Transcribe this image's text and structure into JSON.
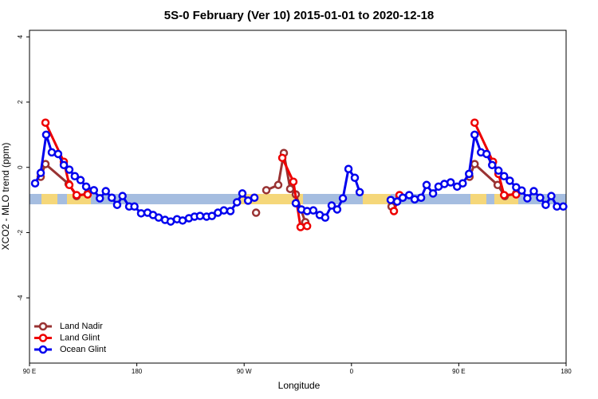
{
  "chart_data": {
    "type": "line",
    "title": "5S-0 February (Ver 10)   2015-01-01 to 2020-12-18",
    "x_label": "Longitude",
    "y_label": "XCO2 - MLO trend (ppm)",
    "xlim": [
      90,
      540
    ],
    "xticks": [
      {
        "value": 90,
        "label": "90 E"
      },
      {
        "value": 180,
        "label": "180"
      },
      {
        "value": 270,
        "label": "90 W"
      },
      {
        "value": 360,
        "label": "0"
      },
      {
        "value": 450,
        "label": "90 E"
      },
      {
        "value": 540,
        "label": "180"
      }
    ],
    "ylim": [
      -6,
      4.2
    ],
    "yticks": [
      -4,
      -2,
      0,
      2,
      4
    ],
    "legend": "bottom-left",
    "series": [
      {
        "name": "Land Nadir",
        "color": "#993333",
        "x": [
          99.4,
          103.4,
          122.8,
          129.5,
          138.8,
          null,
          280,
          null,
          288.6,
          298.6,
          303.3,
          308.6,
          313.3,
          321.3,
          null,
          393.6,
          400.3,
          null,
          459,
          463.3,
          482.6,
          488.6,
          498.1
        ],
        "values": [
          -0.29,
          0.1,
          -0.51,
          -0.88,
          -0.8,
          null,
          -1.39,
          null,
          -0.7,
          -0.54,
          0.44,
          -0.66,
          -0.83,
          -1.68,
          null,
          -1.2,
          -0.88,
          null,
          -0.29,
          0.1,
          -0.54,
          -0.88,
          -0.8
        ]
      },
      {
        "name": "Land Glint",
        "color": "#ee0000",
        "x": [
          103.4,
          118.8,
          123.4,
          129.5,
          138.8,
          null,
          302,
          311.3,
          317.3,
          322.8,
          null,
          395.6,
          400.3,
          null,
          463.3,
          478.7,
          483.3,
          488,
          498.1
        ],
        "values": [
          1.37,
          0.17,
          -0.54,
          -0.85,
          -0.83,
          null,
          0.29,
          -0.44,
          -1.83,
          -1.8,
          null,
          -1.34,
          -0.85,
          null,
          1.37,
          0.17,
          -0.2,
          -0.85,
          -0.83
        ]
      },
      {
        "name": "Ocean Glint",
        "color": "#0000ee",
        "x": [
          94.7,
          99.4,
          104,
          108.7,
          114,
          118.8,
          123.4,
          128,
          132.8,
          137.5,
          144,
          149,
          154,
          159,
          163.5,
          168,
          173.6,
          178,
          183.6,
          189,
          193.6,
          198.3,
          203.7,
          208.4,
          213.7,
          218.4,
          223.7,
          228.4,
          233,
          238.5,
          243,
          248,
          253,
          258.5,
          264,
          268.5,
          273.3,
          278.6,
          null,
          313.3,
          318,
          322.8,
          328,
          333.4,
          338,
          343.4,
          348,
          352.8,
          357.5,
          362.8,
          366.9,
          null,
          392.9,
          398.3,
          403,
          408.4,
          413,
          418.4,
          423,
          428.4,
          433,
          437.9,
          443.2,
          448.6,
          453.3,
          458.6,
          463.3,
          468.6,
          473.3,
          478,
          483.3,
          488,
          492.8,
          498.1,
          502.8,
          507.5,
          512.9,
          518.2,
          522.9,
          527.6,
          532.3,
          537.6
        ],
        "values": [
          -0.49,
          -0.17,
          1.0,
          0.46,
          0.41,
          0.07,
          -0.07,
          -0.27,
          -0.39,
          -0.59,
          -0.7,
          -0.95,
          -0.73,
          -0.93,
          -1.15,
          -0.88,
          -1.2,
          -1.2,
          -1.41,
          -1.39,
          -1.46,
          -1.54,
          -1.61,
          -1.66,
          -1.59,
          -1.63,
          -1.56,
          -1.51,
          -1.49,
          -1.51,
          -1.49,
          -1.39,
          -1.32,
          -1.34,
          -1.07,
          -0.8,
          -1.02,
          -0.93,
          null,
          -1.1,
          -1.29,
          -1.34,
          -1.32,
          -1.46,
          -1.54,
          -1.17,
          -1.29,
          -0.95,
          -0.05,
          -0.32,
          -0.76,
          null,
          -1.0,
          -1.05,
          -0.93,
          -0.85,
          -0.98,
          -0.93,
          -0.54,
          -0.8,
          -0.59,
          -0.51,
          -0.46,
          -0.59,
          -0.49,
          -0.2,
          1.0,
          0.46,
          0.41,
          0.07,
          -0.1,
          -0.27,
          -0.41,
          -0.61,
          -0.71,
          -0.95,
          -0.73,
          -0.93,
          -1.15,
          -0.88,
          -1.2,
          -1.2
        ]
      }
    ]
  }
}
